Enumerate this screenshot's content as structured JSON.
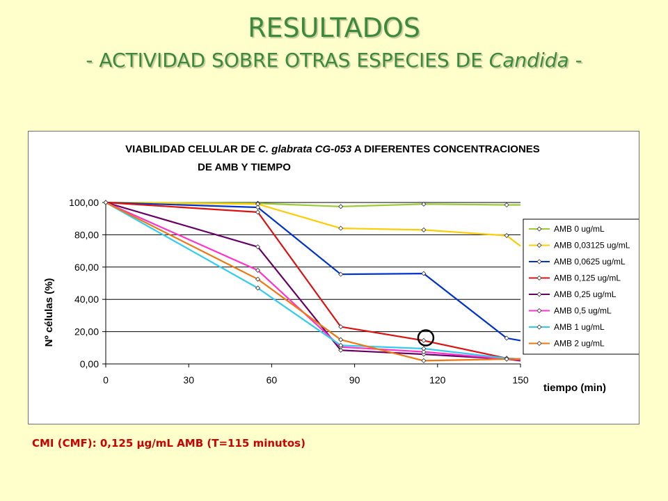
{
  "slide": {
    "title": "RESULTADOS",
    "subtitle_prefix": "- ACTIVIDAD SOBRE OTRAS ESPECIES DE ",
    "subtitle_italic": "Candida",
    "subtitle_suffix": " -",
    "cmi_note": "CMI (CMF): 0,125 µg/mL AMB (T=115 minutos)"
  },
  "chart_data": {
    "type": "line",
    "title_line1_a": "VIABILIDAD CELULAR DE ",
    "title_line1_italic": "C. glabrata CG-053",
    "title_line1_b": " A DIFERENTES CONCENTRACIONES",
    "title_line2": "DE AMB Y TIEMPO",
    "xlabel": "tiempo (min)",
    "ylabel": "Nº células (%)",
    "xlim": [
      0,
      150
    ],
    "ylim": [
      0,
      100
    ],
    "x_ticks": [
      0,
      30,
      60,
      90,
      120,
      150
    ],
    "y_ticks": [
      0,
      20,
      40,
      60,
      80,
      100
    ],
    "y_tick_labels": [
      "0,00",
      "20,00",
      "40,00",
      "60,00",
      "80,00",
      "100,00"
    ],
    "grid": "horizontal",
    "legend_position": "right",
    "x": [
      0,
      55,
      85,
      115,
      145,
      150
    ],
    "series": [
      {
        "name": "AMB 0 ug/mL",
        "color": "#99cc33",
        "values": [
          100,
          99.5,
          97.5,
          99,
          98.5,
          98.5
        ]
      },
      {
        "name": "AMB 0,03125 ug/mL",
        "color": "#ffcc00",
        "values": [
          100,
          99,
          84,
          83,
          79.5,
          73
        ]
      },
      {
        "name": "AMB 0,0625 ug/mL",
        "color": "#0033cc",
        "values": [
          100,
          97,
          55.5,
          56,
          16,
          14.5
        ]
      },
      {
        "name": "AMB 0,125 ug/mL",
        "color": "#dd1111",
        "values": [
          100,
          94,
          23,
          14.5,
          3.5,
          3
        ]
      },
      {
        "name": "AMB 0,25 ug/mL",
        "color": "#660066",
        "values": [
          100,
          72.5,
          8.5,
          6,
          3,
          2
        ]
      },
      {
        "name": "AMB 0,5 ug/mL",
        "color": "#ff33cc",
        "values": [
          100,
          58,
          10.5,
          7.5,
          3,
          2.5
        ]
      },
      {
        "name": "AMB 1 ug/mL",
        "color": "#33ccee",
        "values": [
          100,
          47,
          11.5,
          9.5,
          3.5,
          3
        ]
      },
      {
        "name": "AMB 2 ug/mL",
        "color": "#ee7711",
        "values": [
          100,
          52.5,
          15,
          2,
          3,
          3
        ]
      }
    ],
    "annotation": {
      "type": "circle",
      "x": 115,
      "y": 17
    }
  }
}
